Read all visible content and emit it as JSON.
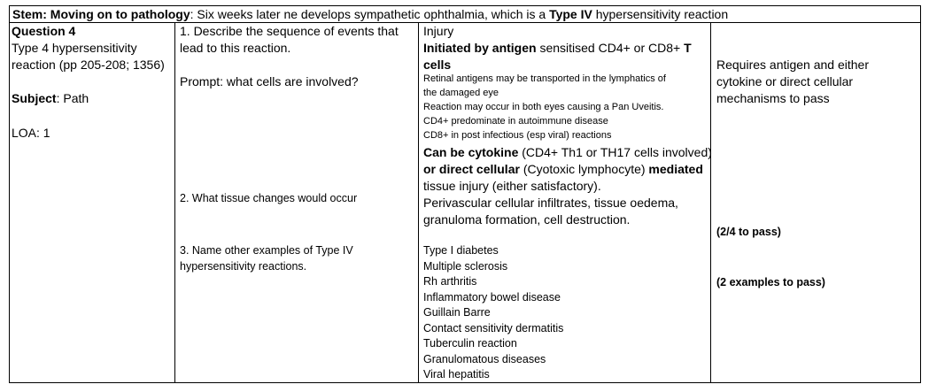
{
  "stem": {
    "label": "Stem: Moving on to pathology",
    "text1": ": Six weeks later ne develops sympathetic ophthalmia, which is a ",
    "bold": "Type IV",
    "text2": " hypersensitivity reaction"
  },
  "col1": {
    "title": "Question 4",
    "line1": "Type 4 hypersensitivity",
    "line2": "reaction (pp 205-208; 1356)",
    "subject_label": "Subject",
    "subject_value": ": Path",
    "loa": "LOA: 1"
  },
  "col2": {
    "q1_line1": "1. Describe the sequence of events that",
    "q1_line2": "lead to this reaction.",
    "prompt": "Prompt: what cells are involved?",
    "q2": "2. What tissue changes would occur",
    "q3_line1": "3. Name other examples of Type IV",
    "q3_line2": "hypersensitivity reactions."
  },
  "col3": {
    "injury": "Injury",
    "initiated_bold": "Initiated by antigen",
    "initiated_text": " sensitised CD4+ or CD8+ ",
    "t_bold": "T",
    "cells_bold": "cells",
    "notes": [
      "Retinal antigens may be transported in the lymphatics of",
      "the damaged eye",
      "Reaction may occur in both eyes causing a Pan Uveitis.",
      "CD4+ predominate in autoimmune disease",
      "CD8+ in post infectious (esp viral) reactions"
    ],
    "cytokine_bold": "Can be cytokine",
    "cytokine_text": " (CD4+ Th1 or TH17 cells involved)",
    "direct_bold1": "or direct cellular",
    "direct_text": " (Cyotoxic lymphocyte) ",
    "direct_bold2": "mediated",
    "tissue_injury": "tissue injury (either satisfactory).",
    "changes_line1": "Perivascular cellular infiltrates, tissue oedema,",
    "changes_line2": "granuloma formation, cell destruction.",
    "examples": [
      "Type I diabetes",
      "Multiple sclerosis",
      "Rh arthritis",
      "Inflammatory bowel disease",
      "Guillain Barre",
      "Contact sensitivity dermatitis",
      "Tuberculin reaction",
      "Granulomatous diseases",
      "Viral hepatitis"
    ]
  },
  "col4": {
    "req_line1": "Requires antigen and either",
    "req_line2": "cytokine or direct cellular",
    "req_line3": "mechanisms to pass",
    "pass1": "(2/4 to pass)",
    "pass2": "(2 examples to pass)"
  }
}
